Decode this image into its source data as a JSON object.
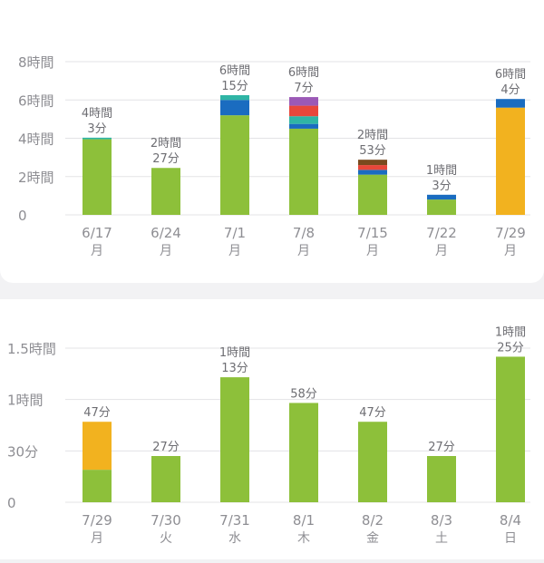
{
  "chart_data": [
    {
      "type": "bar",
      "stacked": true,
      "title": "",
      "ylim": [
        0,
        8
      ],
      "y_unit": "hours",
      "y_ticks": [
        {
          "value": 0,
          "label": "0"
        },
        {
          "value": 2,
          "label": "2時間"
        },
        {
          "value": 4,
          "label": "4時間"
        },
        {
          "value": 6,
          "label": "6時間"
        },
        {
          "value": 8,
          "label": "8時間"
        }
      ],
      "grid": true,
      "categories": [
        {
          "date": "6/17",
          "day": "月"
        },
        {
          "date": "6/24",
          "day": "月"
        },
        {
          "date": "7/1",
          "day": "月"
        },
        {
          "date": "7/8",
          "day": "月"
        },
        {
          "date": "7/15",
          "day": "月"
        },
        {
          "date": "7/22",
          "day": "月"
        },
        {
          "date": "7/29",
          "day": "月"
        }
      ],
      "total_labels": [
        [
          "4時間",
          "3分"
        ],
        [
          "2時間",
          "27分"
        ],
        [
          "6時間",
          "15分"
        ],
        [
          "6時間",
          "7分"
        ],
        [
          "2時間",
          "53分"
        ],
        [
          "1時間",
          "3分"
        ],
        [
          "6時間",
          "4分"
        ]
      ],
      "series": [
        {
          "color": "#8dc03a",
          "values": [
            3.95,
            2.45,
            5.2,
            4.5,
            2.1,
            0.8,
            0.0
          ]
        },
        {
          "color": "#f2b21f",
          "values": [
            0,
            0,
            0,
            0,
            0,
            0,
            5.6
          ]
        },
        {
          "color": "#1a6cc0",
          "values": [
            0,
            0,
            0.8,
            0.25,
            0.25,
            0.25,
            0.45
          ]
        },
        {
          "color": "#2fb5a5",
          "values": [
            0.08,
            0,
            0.25,
            0.4,
            0,
            0,
            0
          ]
        },
        {
          "color": "#e8473a",
          "values": [
            0,
            0,
            0,
            0.55,
            0.25,
            0,
            0
          ]
        },
        {
          "color": "#9b59b6",
          "values": [
            0,
            0,
            0,
            0.45,
            0,
            0,
            0
          ]
        },
        {
          "color": "#7a4a1e",
          "values": [
            0,
            0,
            0,
            0,
            0.28,
            0,
            0
          ]
        }
      ]
    },
    {
      "type": "bar",
      "stacked": true,
      "title": "",
      "ylim": [
        0,
        90
      ],
      "y_unit": "minutes",
      "y_ticks": [
        {
          "value": 0,
          "label": "0"
        },
        {
          "value": 30,
          "label": "30分"
        },
        {
          "value": 60,
          "label": "1時間"
        },
        {
          "value": 90,
          "label": "1.5時間"
        }
      ],
      "grid": true,
      "categories": [
        {
          "date": "7/29",
          "day": "月"
        },
        {
          "date": "7/30",
          "day": "火"
        },
        {
          "date": "7/31",
          "day": "水"
        },
        {
          "date": "8/1",
          "day": "木"
        },
        {
          "date": "8/2",
          "day": "金"
        },
        {
          "date": "8/3",
          "day": "土"
        },
        {
          "date": "8/4",
          "day": "日"
        }
      ],
      "total_labels": [
        [
          "47分"
        ],
        [
          "27分"
        ],
        [
          "1時間",
          "13分"
        ],
        [
          "58分"
        ],
        [
          "47分"
        ],
        [
          "27分"
        ],
        [
          "1時間",
          "25分"
        ]
      ],
      "series": [
        {
          "color": "#8dc03a",
          "values": [
            19,
            27,
            73,
            58,
            47,
            27,
            85
          ]
        },
        {
          "color": "#f2b21f",
          "values": [
            28,
            0,
            0,
            0,
            0,
            0,
            0
          ]
        }
      ]
    }
  ]
}
